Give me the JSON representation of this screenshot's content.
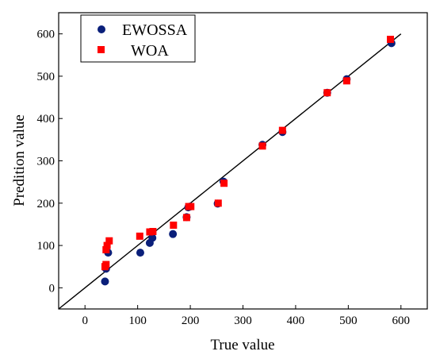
{
  "chart_data": {
    "type": "scatter",
    "xlabel": "True value",
    "ylabel": "Predition value",
    "xlim": [
      -50,
      650
    ],
    "ylim": [
      -50,
      650
    ],
    "xticks": [
      0,
      100,
      200,
      300,
      400,
      500,
      600
    ],
    "yticks": [
      0,
      100,
      200,
      300,
      400,
      500,
      600
    ],
    "grid": false,
    "legend_position": "top-left",
    "reference_line": {
      "x": [
        -50,
        600
      ],
      "y": [
        -50,
        600
      ],
      "color": "#000000"
    },
    "series": [
      {
        "name": "EWOSSA",
        "marker": "circle",
        "color": "#0a1f7a",
        "points": [
          [
            38,
            15
          ],
          [
            40,
            45
          ],
          [
            44,
            83
          ],
          [
            105,
            83
          ],
          [
            123,
            106
          ],
          [
            128,
            118
          ],
          [
            167,
            127
          ],
          [
            193,
            167
          ],
          [
            196,
            190
          ],
          [
            200,
            192
          ],
          [
            252,
            199
          ],
          [
            263,
            251
          ],
          [
            337,
            338
          ],
          [
            375,
            368
          ],
          [
            460,
            461
          ],
          [
            497,
            493
          ],
          [
            582,
            578
          ]
        ]
      },
      {
        "name": "WOA",
        "marker": "square",
        "color": "#ff0000",
        "points": [
          [
            38,
            50
          ],
          [
            40,
            90
          ],
          [
            42,
            100
          ],
          [
            46,
            111
          ],
          [
            104,
            122
          ],
          [
            123,
            132
          ],
          [
            129,
            133
          ],
          [
            168,
            148
          ],
          [
            193,
            166
          ],
          [
            197,
            192
          ],
          [
            201,
            192
          ],
          [
            253,
            200
          ],
          [
            264,
            247
          ],
          [
            337,
            335
          ],
          [
            375,
            372
          ],
          [
            460,
            461
          ],
          [
            497,
            489
          ],
          [
            580,
            587
          ],
          [
            40,
            55
          ]
        ]
      }
    ]
  }
}
